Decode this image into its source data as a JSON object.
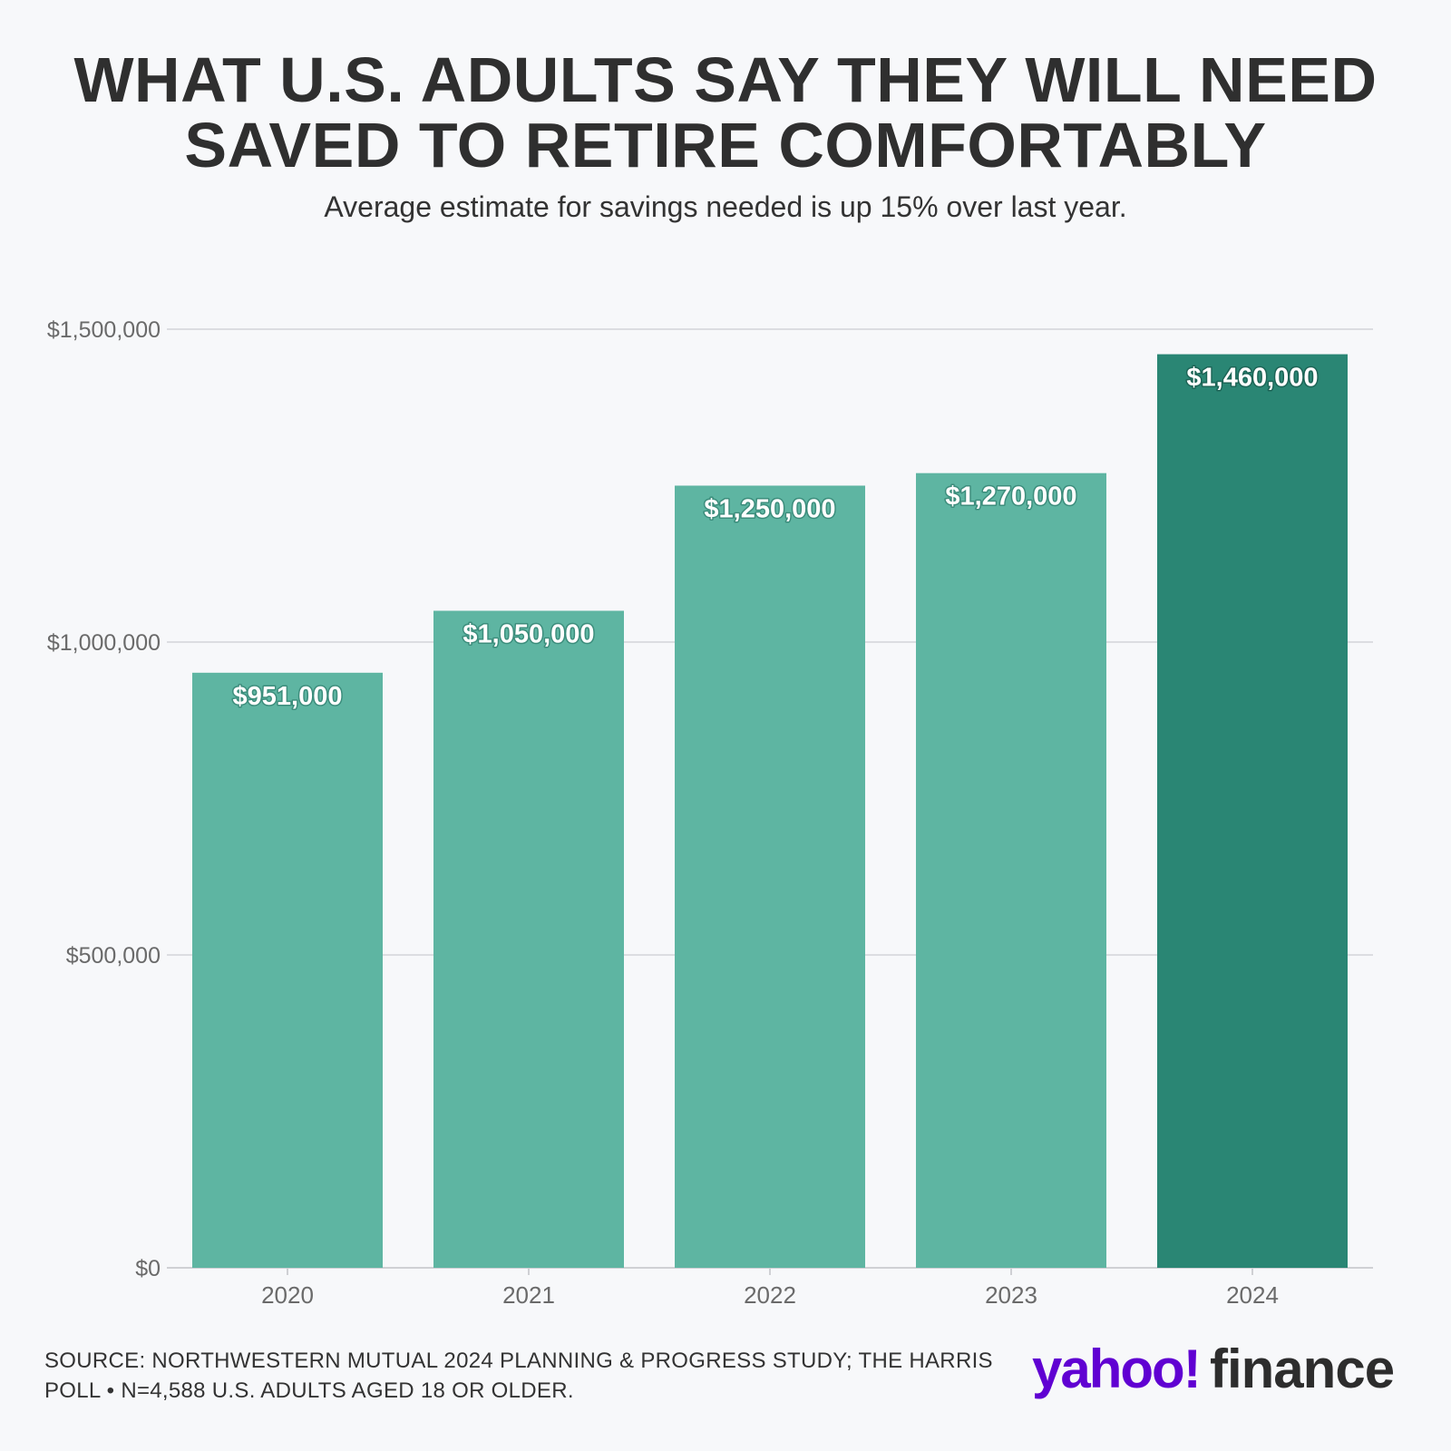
{
  "header": {
    "title_line1": "WHAT U.S. ADULTS SAY THEY WILL NEED",
    "title_line2": "SAVED TO RETIRE COMFORTABLY",
    "subtitle": "Average estimate for savings needed is up 15% over last year."
  },
  "footer": {
    "source": "SOURCE: NORTHWESTERN MUTUAL 2024 PLANNING & PROGRESS STUDY; THE HARRIS POLL • N=4,588 U.S. ADULTS AGED 18 OR OLDER.",
    "logo_text_yahoo": "yahoo!",
    "logo_text_finance": "finance"
  },
  "colors": {
    "bar": "#5eb5a2",
    "bar_highlight": "#2a8674",
    "gridline": "#dcdde1",
    "axis_text": "#6a6a6a",
    "background": "#f7f8fa",
    "logo_purple": "#6001d2",
    "logo_dark": "#2d2d2d"
  },
  "chart_data": {
    "type": "bar",
    "title": "WHAT U.S. ADULTS SAY THEY WILL NEED SAVED TO RETIRE COMFORTABLY",
    "subtitle": "Average estimate for savings needed is up 15% over last year.",
    "categories": [
      "2020",
      "2021",
      "2022",
      "2023",
      "2024"
    ],
    "values": [
      951000,
      1050000,
      1250000,
      1270000,
      1460000
    ],
    "data_labels": [
      "$951,000",
      "$1,050,000",
      "$1,250,000",
      "$1,270,000",
      "$1,460,000"
    ],
    "highlight_index": 4,
    "xlabel": "",
    "ylabel": "",
    "ylim": [
      0,
      1500000
    ],
    "yticks": [
      0,
      500000,
      1000000,
      1500000
    ],
    "ytick_labels": [
      "$0",
      "$500,000",
      "$1,000,000",
      "$1,500,000"
    ],
    "grid": true,
    "legend": "none"
  }
}
